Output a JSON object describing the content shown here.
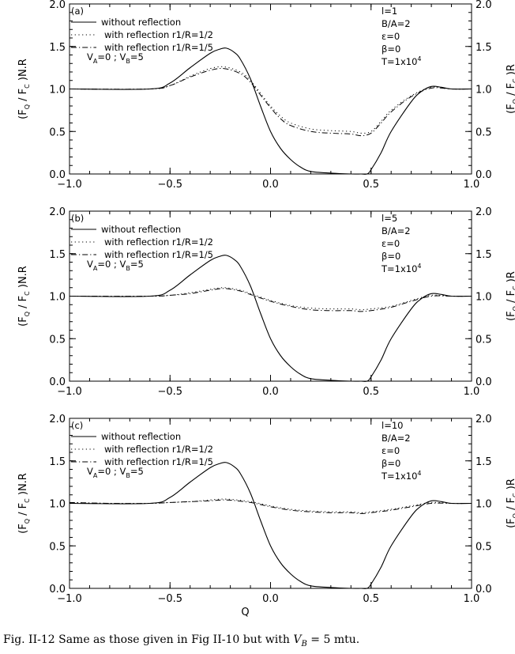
{
  "caption": "Fig. II-12 Same as those given in Fig II-10 but with V_B = 5 mtu.",
  "chart_data": [
    {
      "type": "line",
      "panel_label": "(a)",
      "xlabel": "",
      "ylabel_left": "(F_Q / F_C )N.R",
      "ylabel_right": "(F_Q / F_C )R",
      "xlim": [
        -1.0,
        1.0
      ],
      "ylim": [
        0.0,
        2.0
      ],
      "x_ticks": [
        "−1.0",
        "−0.5",
        "0.0",
        "0.5",
        "1.0"
      ],
      "y_ticks": [
        "0.0",
        "0.5",
        "1.0",
        "1.5",
        "2.0"
      ],
      "legend": [
        "without reflection",
        "with reflection r1/R=1/2",
        "with reflection r1/R=1/5"
      ],
      "velocity_note": "V_A=0 ; V_B=5",
      "params": [
        "l=1",
        "B/A=2",
        "ε=0",
        "β=0",
        "T=1x10^4"
      ],
      "series": [
        {
          "name": "without reflection",
          "style": "solid",
          "x": [
            -1.0,
            -0.6,
            -0.5,
            -0.4,
            -0.3,
            -0.25,
            -0.22,
            -0.18,
            -0.15,
            -0.1,
            -0.05,
            0.0,
            0.05,
            0.1,
            0.15,
            0.2,
            0.3,
            0.4,
            0.45,
            0.48,
            0.5,
            0.55,
            0.6,
            0.7,
            0.75,
            0.8,
            0.85,
            0.9,
            1.0
          ],
          "values": [
            1.0,
            1.0,
            1.07,
            1.25,
            1.42,
            1.47,
            1.48,
            1.43,
            1.35,
            1.12,
            0.8,
            0.5,
            0.3,
            0.17,
            0.08,
            0.03,
            0.01,
            0.0,
            0.0,
            0.0,
            0.05,
            0.25,
            0.5,
            0.85,
            0.97,
            1.03,
            1.02,
            1.0,
            1.0
          ]
        },
        {
          "name": "with reflection r1/R=1/2",
          "style": "dotted",
          "x": [
            -1.0,
            -0.6,
            -0.5,
            -0.4,
            -0.3,
            -0.23,
            -0.15,
            -0.1,
            -0.05,
            0.0,
            0.05,
            0.1,
            0.2,
            0.3,
            0.4,
            0.45,
            0.5,
            0.55,
            0.6,
            0.7,
            0.8,
            0.9,
            1.0
          ],
          "values": [
            1.0,
            1.0,
            1.04,
            1.15,
            1.24,
            1.26,
            1.2,
            1.1,
            0.95,
            0.8,
            0.68,
            0.6,
            0.53,
            0.51,
            0.5,
            0.48,
            0.5,
            0.62,
            0.75,
            0.92,
            1.02,
            1.0,
            1.0
          ]
        },
        {
          "name": "with reflection r1/R=1/5",
          "style": "dashdot",
          "x": [
            -1.0,
            -0.6,
            -0.5,
            -0.4,
            -0.3,
            -0.23,
            -0.15,
            -0.1,
            -0.05,
            0.0,
            0.05,
            0.1,
            0.2,
            0.3,
            0.4,
            0.45,
            0.5,
            0.55,
            0.6,
            0.7,
            0.8,
            0.9,
            1.0
          ],
          "values": [
            1.0,
            1.0,
            1.04,
            1.14,
            1.22,
            1.24,
            1.18,
            1.08,
            0.93,
            0.78,
            0.65,
            0.57,
            0.5,
            0.48,
            0.47,
            0.45,
            0.48,
            0.6,
            0.73,
            0.91,
            1.01,
            1.0,
            1.0
          ]
        }
      ]
    },
    {
      "type": "line",
      "panel_label": "(b)",
      "xlabel": "",
      "ylabel_left": "(F_Q / F_C )N.R",
      "ylabel_right": "(F_Q / F_C )R",
      "xlim": [
        -1.0,
        1.0
      ],
      "ylim": [
        0.0,
        2.0
      ],
      "x_ticks": [
        "−1.0",
        "−0.5",
        "0.0",
        "0.5",
        "1.0"
      ],
      "y_ticks": [
        "0.0",
        "0.5",
        "1.0",
        "1.5",
        "2.0"
      ],
      "legend": [
        "without reflection",
        "with reflection r1/R=1/2",
        "with reflection r1/R=1/5"
      ],
      "velocity_note": "V_A=0 ; V_B=5",
      "params": [
        "l=5",
        "B/A=2",
        "ε=0",
        "β=0",
        "T=1x10^4"
      ],
      "series": [
        {
          "name": "without reflection",
          "style": "solid",
          "x": [
            -1.0,
            -0.6,
            -0.5,
            -0.4,
            -0.3,
            -0.25,
            -0.22,
            -0.18,
            -0.15,
            -0.1,
            -0.05,
            0.0,
            0.05,
            0.1,
            0.15,
            0.2,
            0.3,
            0.4,
            0.45,
            0.48,
            0.5,
            0.55,
            0.6,
            0.7,
            0.75,
            0.8,
            0.85,
            0.9,
            1.0
          ],
          "values": [
            1.0,
            1.0,
            1.07,
            1.25,
            1.42,
            1.47,
            1.48,
            1.43,
            1.35,
            1.12,
            0.8,
            0.5,
            0.3,
            0.17,
            0.08,
            0.03,
            0.01,
            0.0,
            0.0,
            0.0,
            0.05,
            0.25,
            0.5,
            0.85,
            0.97,
            1.03,
            1.02,
            1.0,
            1.0
          ]
        },
        {
          "name": "with reflection r1/R=1/2",
          "style": "dotted",
          "x": [
            -1.0,
            -0.6,
            -0.5,
            -0.4,
            -0.3,
            -0.23,
            -0.15,
            -0.1,
            0.0,
            0.1,
            0.2,
            0.3,
            0.4,
            0.45,
            0.5,
            0.6,
            0.7,
            0.8,
            0.9,
            1.0
          ],
          "values": [
            1.0,
            1.0,
            1.01,
            1.04,
            1.08,
            1.1,
            1.07,
            1.03,
            0.95,
            0.89,
            0.86,
            0.85,
            0.85,
            0.84,
            0.85,
            0.88,
            0.95,
            1.01,
            1.0,
            1.0
          ]
        },
        {
          "name": "with reflection r1/R=1/5",
          "style": "dashdot",
          "x": [
            -1.0,
            -0.6,
            -0.5,
            -0.4,
            -0.3,
            -0.23,
            -0.15,
            -0.1,
            0.0,
            0.1,
            0.2,
            0.3,
            0.4,
            0.45,
            0.5,
            0.6,
            0.7,
            0.8,
            0.9,
            1.0
          ],
          "values": [
            1.0,
            1.0,
            1.01,
            1.03,
            1.07,
            1.09,
            1.06,
            1.02,
            0.94,
            0.88,
            0.84,
            0.83,
            0.83,
            0.82,
            0.83,
            0.87,
            0.94,
            1.0,
            1.0,
            1.0
          ]
        }
      ]
    },
    {
      "type": "line",
      "panel_label": "(c)",
      "xlabel": "Q",
      "ylabel_left": "(F_Q / F_C )N.R",
      "ylabel_right": "(F_Q / F_C )R",
      "xlim": [
        -1.0,
        1.0
      ],
      "ylim": [
        0.0,
        2.0
      ],
      "x_ticks": [
        "−1.0",
        "−0.5",
        "0.0",
        "0.5",
        "1.0"
      ],
      "y_ticks": [
        "0.0",
        "0.5",
        "1.0",
        "1.5",
        "2.0"
      ],
      "legend": [
        "without reflection",
        "with reflection r1/R=1/2",
        "with reflection r1/R=1/5"
      ],
      "velocity_note": "V_A=0 ; V_B=5",
      "params": [
        "l=10",
        "B/A=2",
        "ε=0",
        "β=0",
        "T=1x10^4"
      ],
      "series": [
        {
          "name": "without reflection",
          "style": "solid",
          "x": [
            -1.0,
            -0.6,
            -0.5,
            -0.4,
            -0.3,
            -0.25,
            -0.22,
            -0.18,
            -0.15,
            -0.1,
            -0.05,
            0.0,
            0.05,
            0.1,
            0.15,
            0.2,
            0.3,
            0.4,
            0.45,
            0.48,
            0.5,
            0.55,
            0.6,
            0.7,
            0.75,
            0.8,
            0.85,
            0.9,
            1.0
          ],
          "values": [
            1.0,
            1.0,
            1.07,
            1.25,
            1.42,
            1.47,
            1.48,
            1.43,
            1.35,
            1.12,
            0.8,
            0.5,
            0.3,
            0.17,
            0.08,
            0.03,
            0.01,
            0.0,
            0.0,
            0.0,
            0.05,
            0.25,
            0.5,
            0.85,
            0.97,
            1.03,
            1.02,
            1.0,
            1.0
          ]
        },
        {
          "name": "with reflection r1/R=1/2",
          "style": "dotted",
          "x": [
            -1.0,
            -0.8,
            -0.6,
            -0.5,
            -0.4,
            -0.3,
            -0.22,
            -0.1,
            0.0,
            0.1,
            0.2,
            0.3,
            0.4,
            0.45,
            0.5,
            0.6,
            0.7,
            0.8,
            0.9,
            1.0
          ],
          "values": [
            1.01,
            1.0,
            1.0,
            1.01,
            1.02,
            1.04,
            1.05,
            1.02,
            0.97,
            0.93,
            0.91,
            0.9,
            0.9,
            0.89,
            0.9,
            0.93,
            0.97,
            1.01,
            1.0,
            1.0
          ]
        },
        {
          "name": "with reflection r1/R=1/5",
          "style": "dashdot",
          "x": [
            -1.0,
            -0.8,
            -0.6,
            -0.5,
            -0.4,
            -0.3,
            -0.22,
            -0.1,
            0.0,
            0.1,
            0.2,
            0.3,
            0.4,
            0.45,
            0.5,
            0.6,
            0.7,
            0.8,
            0.9,
            1.0
          ],
          "values": [
            1.01,
            1.0,
            1.0,
            1.01,
            1.02,
            1.03,
            1.04,
            1.01,
            0.96,
            0.92,
            0.9,
            0.89,
            0.89,
            0.88,
            0.89,
            0.92,
            0.96,
            1.0,
            1.0,
            1.0
          ]
        }
      ]
    }
  ]
}
